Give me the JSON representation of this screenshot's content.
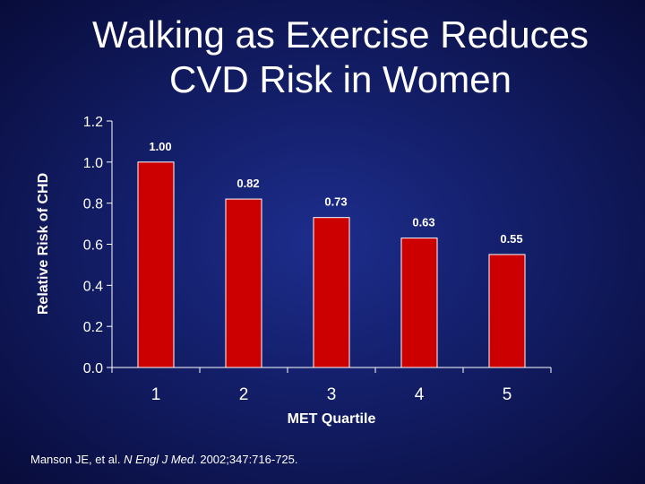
{
  "slide": {
    "title_line1": "Walking as Exercise Reduces",
    "title_line2": "CVD Risk in Women"
  },
  "citation": {
    "authors": "Manson JE, et al.",
    "journal": "N Engl J Med",
    "details": ". 2002;347:716-725."
  },
  "chart_data": {
    "type": "bar",
    "categories": [
      "1",
      "2",
      "3",
      "4",
      "5"
    ],
    "values": [
      1.0,
      0.82,
      0.73,
      0.63,
      0.55
    ],
    "value_labels": [
      "1.00",
      "0.82",
      "0.73",
      "0.63",
      "0.55"
    ],
    "xlabel": "MET Quartile",
    "ylabel": "Relative Risk of CHD",
    "ylim": [
      0,
      1.2
    ],
    "yticks": [
      "0.0",
      "0.2",
      "0.4",
      "0.6",
      "0.8",
      "1.0",
      "1.2"
    ],
    "bar_color": "#cc0000",
    "grid": false
  }
}
